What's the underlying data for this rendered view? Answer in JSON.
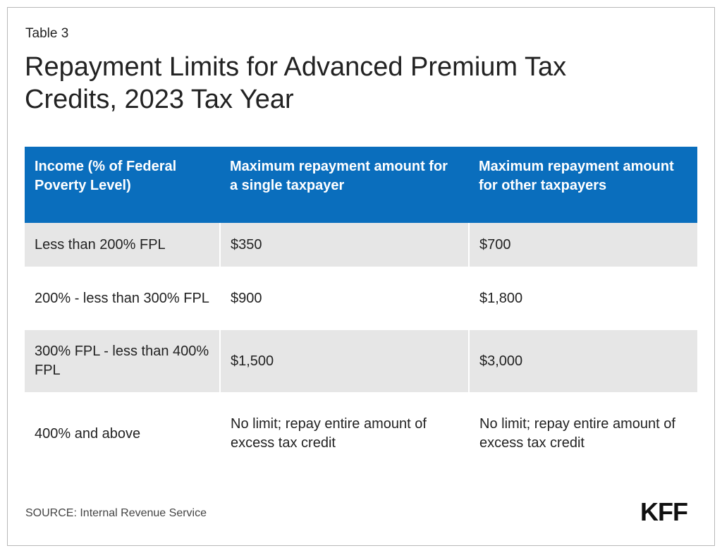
{
  "kicker": "Table 3",
  "title": "Repayment Limits for Advanced Premium Tax Credits, 2023 Tax Year",
  "table": {
    "headers": [
      "Income (% of Federal Poverty Level)",
      "Maximum repayment amount for a single taxpayer",
      "Maximum repayment amount for other taxpayers"
    ],
    "rows": [
      [
        "Less than 200% FPL",
        "$350",
        "$700"
      ],
      [
        "200% - less than 300% FPL",
        "$900",
        "$1,800"
      ],
      [
        "300% FPL - less than 400% FPL",
        "$1,500",
        "$3,000"
      ],
      [
        "400% and above",
        "No limit; repay entire amount of excess tax credit",
        "No limit; repay entire amount of excess tax credit"
      ]
    ]
  },
  "source": "SOURCE: Internal Revenue Service",
  "logo": "KFF",
  "colors": {
    "header_bg": "#0a6ebd",
    "row_shade": "#e6e6e6",
    "text": "#222222"
  }
}
